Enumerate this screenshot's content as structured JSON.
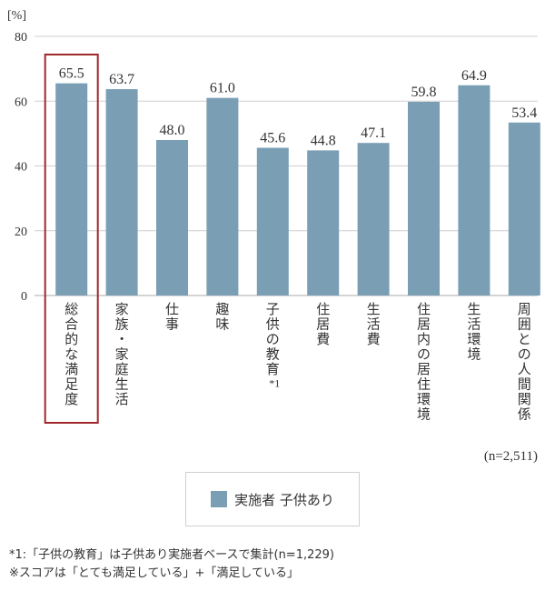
{
  "chart_data": {
    "type": "bar",
    "unit_label": "[%]",
    "ylim": [
      0,
      80
    ],
    "yticks": [
      "0",
      "20",
      "40",
      "60",
      "80"
    ],
    "grid": true,
    "categories": [
      "総合的な満足度",
      "家族・家庭生活",
      "仕事",
      "趣味",
      "子供の教育",
      "住居費",
      "生活費",
      "住居内の居住環境",
      "生活環境",
      "周囲との人間関係"
    ],
    "category_notes": [
      "",
      "",
      "",
      "",
      "*1",
      "",
      "",
      "",
      "",
      ""
    ],
    "series": [
      {
        "name": "実施者 子供あり",
        "values": [
          65.5,
          63.7,
          48.0,
          61.0,
          45.6,
          44.8,
          47.1,
          59.8,
          64.9,
          53.4
        ]
      }
    ],
    "value_labels": [
      "65.5",
      "63.7",
      "48.0",
      "61.0",
      "45.6",
      "44.8",
      "47.1",
      "59.8",
      "64.9",
      "53.4"
    ],
    "highlighted_category": "総合的な満足度",
    "sample_size": "(n=2,511)",
    "legend_position": "bottom",
    "colors": {
      "bar": "#7a9fb5",
      "highlight_border": "#a0282d",
      "grid": "#cfcfcf",
      "axis": "#aaaaaa"
    }
  },
  "legend": {
    "label": "実施者 子供あり"
  },
  "footnotes": [
    "*1:「子供の教育」は子供あり実施者ベースで集計(n=1,229)",
    "※スコアは「とても満足している」+「満足している」"
  ]
}
